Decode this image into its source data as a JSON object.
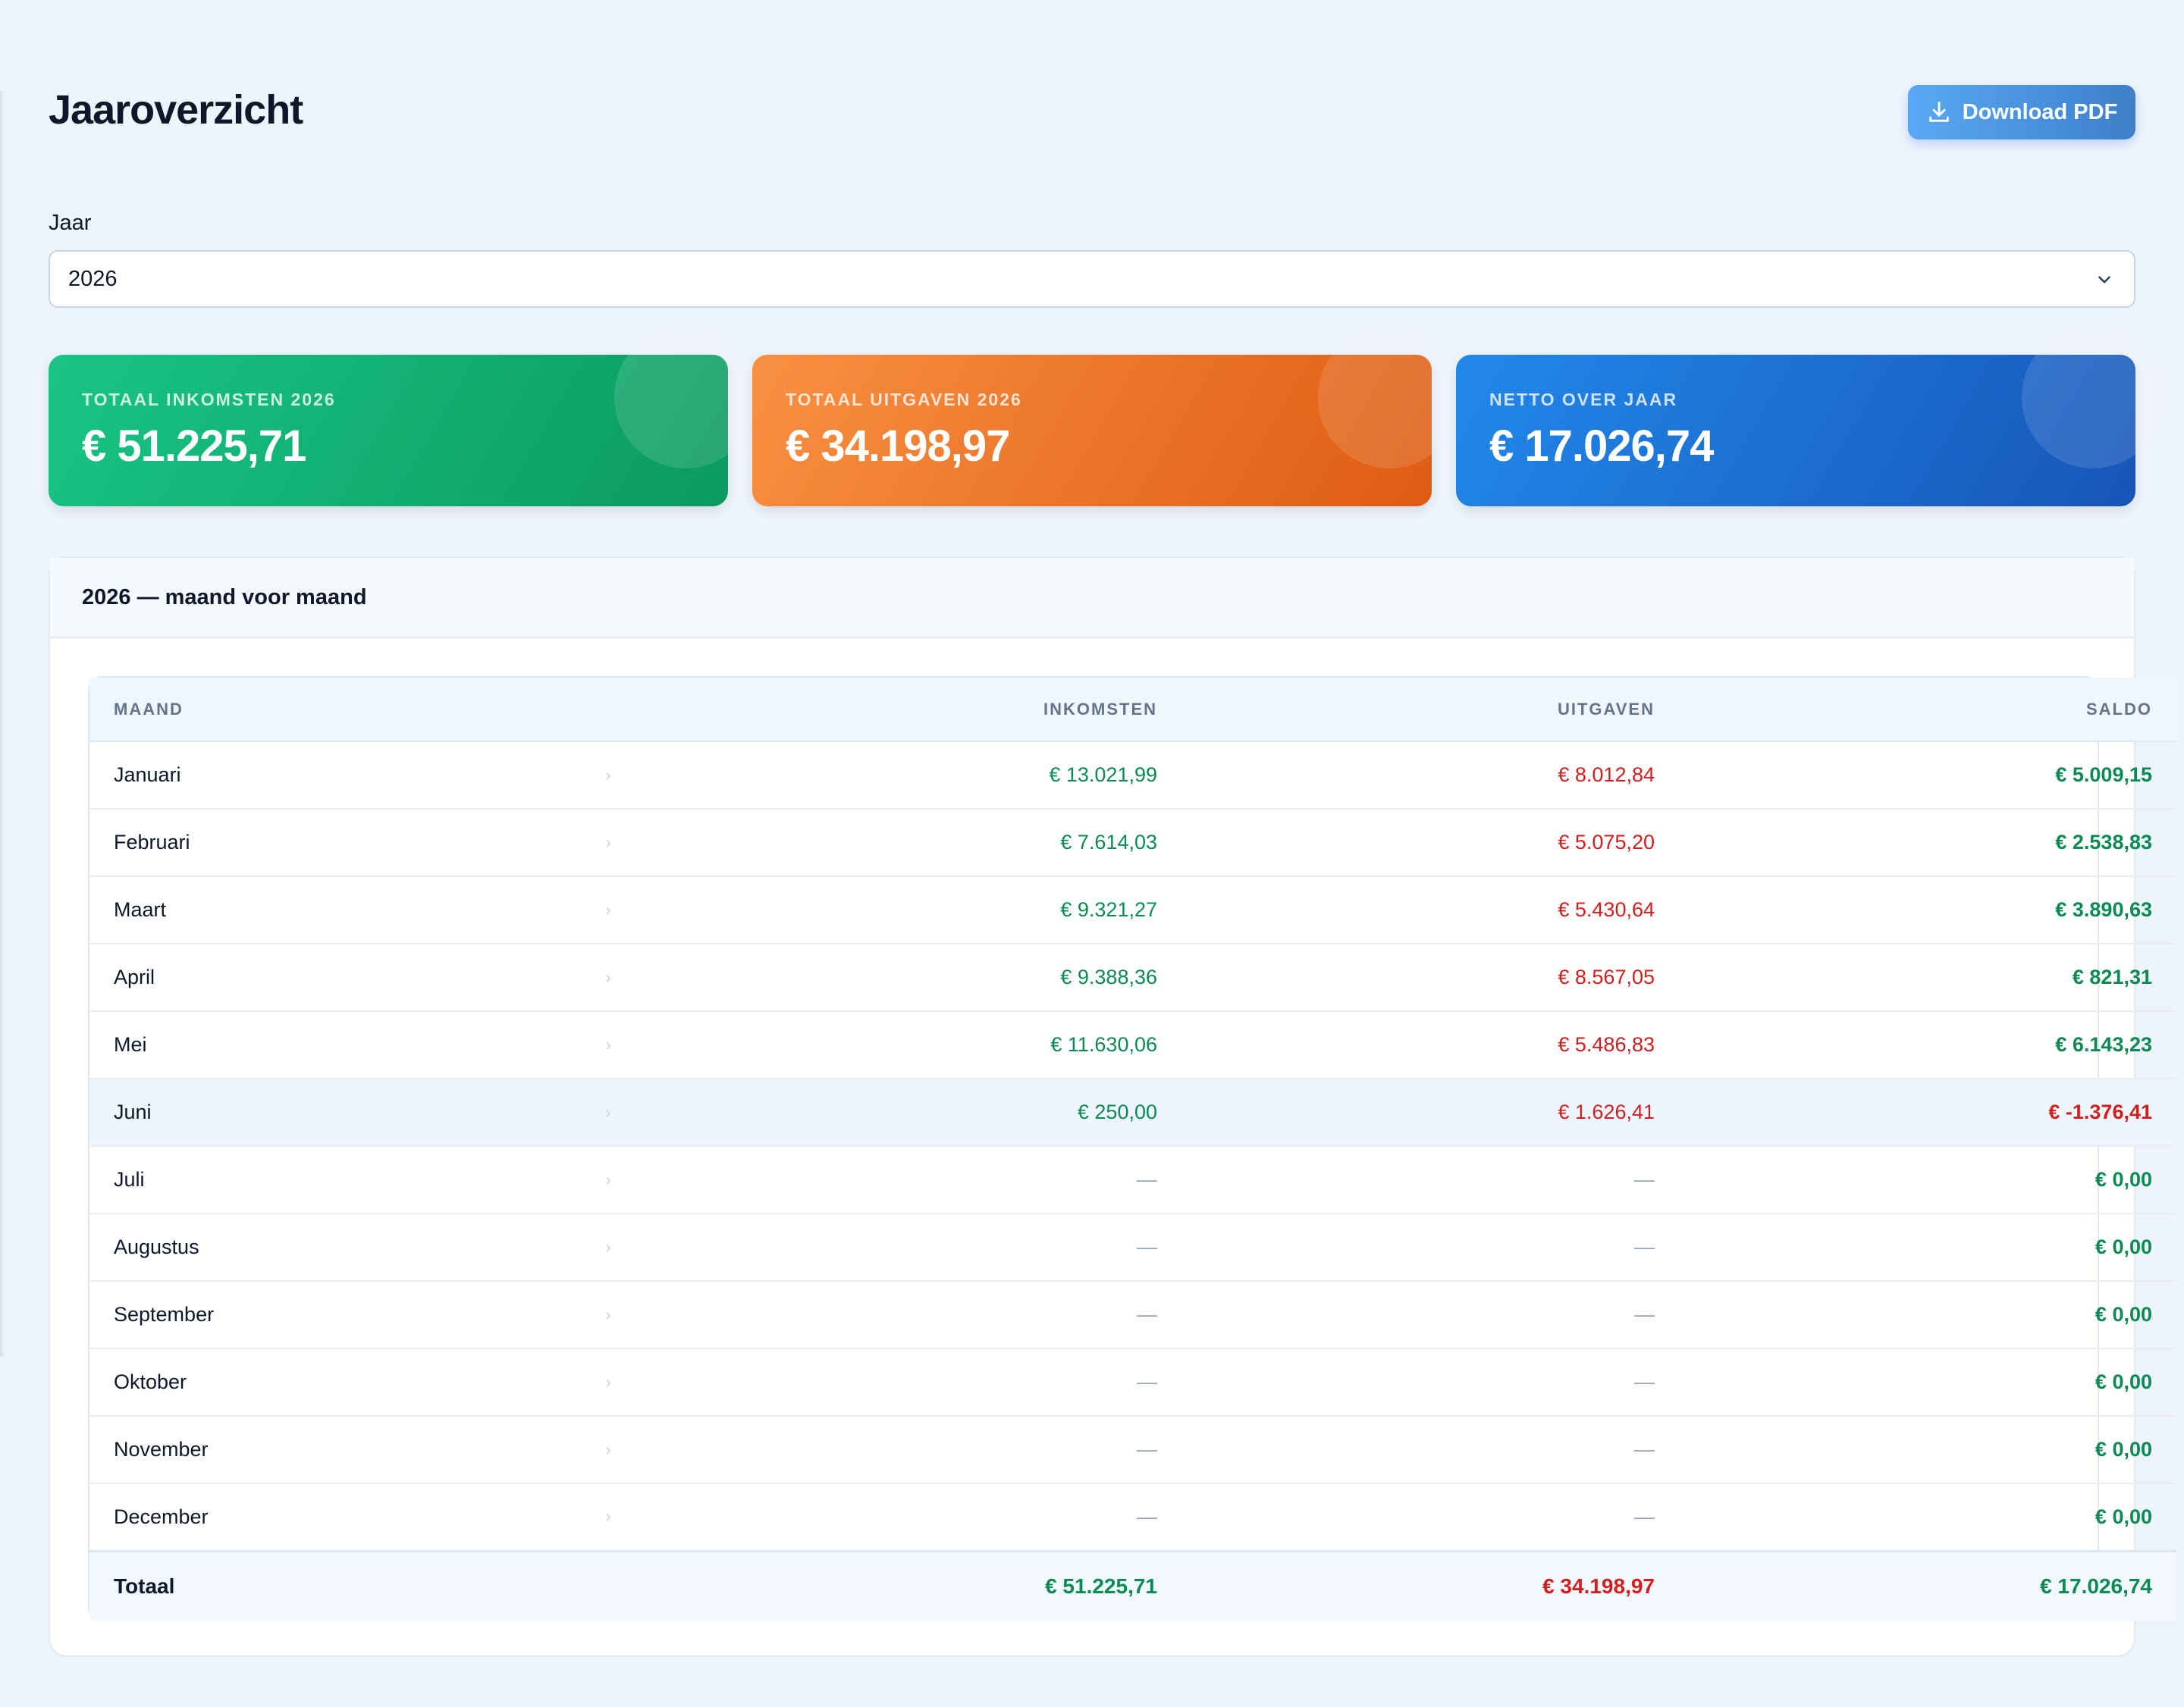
{
  "header": {
    "title": "Jaaroverzicht",
    "pdf_label": "Download PDF"
  },
  "filter": {
    "label": "Jaar",
    "selected": "2026"
  },
  "cards": [
    {
      "label": "TOTAAL INKOMSTEN 2026",
      "value": "€ 51.225,71",
      "color": "#10b573"
    },
    {
      "label": "TOTAAL UITGAVEN 2026",
      "value": "€ 34.198,97",
      "color": "#f07a2a"
    },
    {
      "label": "NETTO OVER JAAR",
      "value": "€ 17.026,74",
      "color": "#1b6fd1"
    }
  ],
  "panel": {
    "title": "2026 — maand voor maand"
  },
  "table": {
    "headers": {
      "month": "MAAND",
      "income": "INKOMSTEN",
      "expenses": "UITGAVEN",
      "balance": "SALDO"
    },
    "arrow": "›",
    "rows": [
      {
        "month": "Januari",
        "income": "€ 13.021,99",
        "expenses": "€ 8.012,84",
        "balance": "€ 5.009,15",
        "negative": false,
        "highlighted": false
      },
      {
        "month": "Februari",
        "income": "€ 7.614,03",
        "expenses": "€ 5.075,20",
        "balance": "€ 2.538,83",
        "negative": false,
        "highlighted": false
      },
      {
        "month": "Maart",
        "income": "€ 9.321,27",
        "expenses": "€ 5.430,64",
        "balance": "€ 3.890,63",
        "negative": false,
        "highlighted": false
      },
      {
        "month": "April",
        "income": "€ 9.388,36",
        "expenses": "€ 8.567,05",
        "balance": "€ 821,31",
        "negative": false,
        "highlighted": false
      },
      {
        "month": "Mei",
        "income": "€ 11.630,06",
        "expenses": "€ 5.486,83",
        "balance": "€ 6.143,23",
        "negative": false,
        "highlighted": false
      },
      {
        "month": "Juni",
        "income": "€ 250,00",
        "expenses": "€ 1.626,41",
        "balance": "€ -1.376,41",
        "negative": true,
        "highlighted": true
      },
      {
        "month": "Juli",
        "income": "—",
        "expenses": "—",
        "balance": "€ 0,00",
        "negative": false,
        "highlighted": false
      },
      {
        "month": "Augustus",
        "income": "—",
        "expenses": "—",
        "balance": "€ 0,00",
        "negative": false,
        "highlighted": false
      },
      {
        "month": "September",
        "income": "—",
        "expenses": "—",
        "balance": "€ 0,00",
        "negative": false,
        "highlighted": false
      },
      {
        "month": "Oktober",
        "income": "—",
        "expenses": "—",
        "balance": "€ 0,00",
        "negative": false,
        "highlighted": false
      },
      {
        "month": "November",
        "income": "—",
        "expenses": "—",
        "balance": "€ 0,00",
        "negative": false,
        "highlighted": false
      },
      {
        "month": "December",
        "income": "—",
        "expenses": "—",
        "balance": "€ 0,00",
        "negative": false,
        "highlighted": false
      }
    ],
    "total": {
      "label": "Totaal",
      "income": "€ 51.225,71",
      "expenses": "€ 34.198,97",
      "balance": "€ 17.026,74"
    }
  },
  "colors": {
    "income": "#0b8a53",
    "expense": "#d11f1f",
    "accent": "#3d7fc9"
  },
  "icons": {
    "pdf": "download-icon",
    "select": "chevron-down-icon",
    "row": "chevron-right-icon"
  }
}
